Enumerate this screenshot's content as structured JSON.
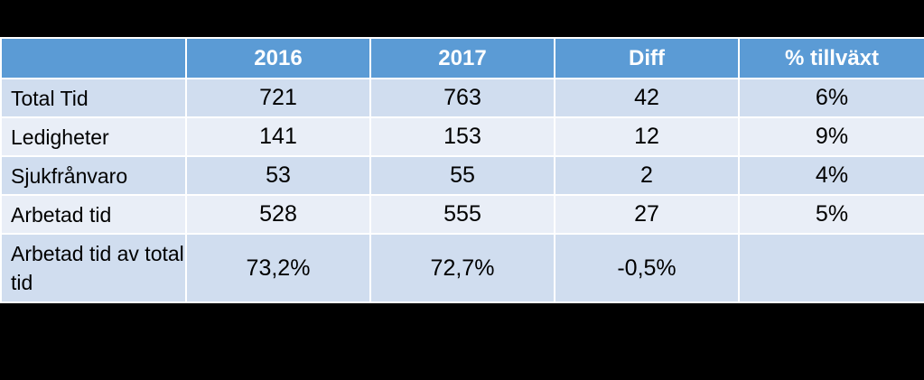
{
  "table": {
    "headers": [
      "",
      "2016",
      "2017",
      "Diff",
      "% tillväxt"
    ],
    "rows": [
      {
        "label": "Total Tid",
        "v2016": "721",
        "v2017": "763",
        "diff": "42",
        "growth": "6%"
      },
      {
        "label": "Ledigheter",
        "v2016": "141",
        "v2017": "153",
        "diff": "12",
        "growth": "9%"
      },
      {
        "label": "Sjukfrånvaro",
        "v2016": "53",
        "v2017": "55",
        "diff": "2",
        "growth": "4%"
      },
      {
        "label": "Arbetad tid",
        "v2016": "528",
        "v2017": "555",
        "diff": "27",
        "growth": "5%"
      },
      {
        "label": "Arbetad tid av total tid",
        "v2016": "73,2%",
        "v2017": "72,7%",
        "diff": "-0,5%",
        "growth": ""
      }
    ]
  },
  "colors": {
    "header_bg": "#5b9bd5",
    "row_odd_bg": "#d0ddef",
    "row_even_bg": "#e9eef7",
    "page_bg": "#000000"
  }
}
